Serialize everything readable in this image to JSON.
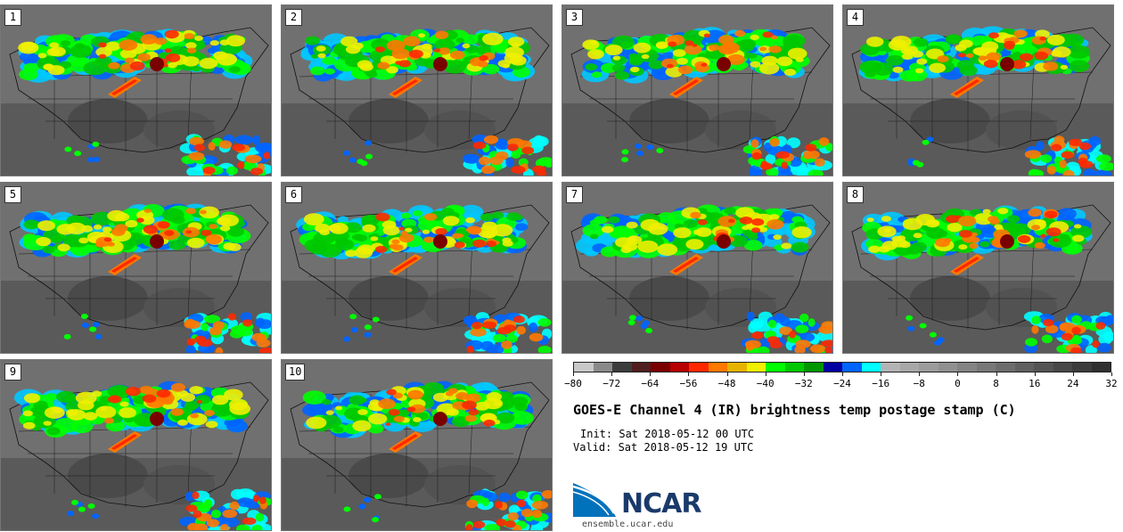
{
  "title": "GOES-E Channel 4 (IR) brightness temp postage stamp (C)",
  "init": "Init: Sat 2018-05-12 00 UTC",
  "valid": "Valid: Sat 2018-05-12 19 UTC",
  "logo_text": "NCAR",
  "site": "ensemble.ucar.edu",
  "panels": [
    {
      "label": "1"
    },
    {
      "label": "2"
    },
    {
      "label": "3"
    },
    {
      "label": "4"
    },
    {
      "label": "5"
    },
    {
      "label": "6"
    },
    {
      "label": "7"
    },
    {
      "label": "8"
    },
    {
      "label": "9"
    },
    {
      "label": "10"
    }
  ],
  "colorbar": {
    "colors": [
      "#c8c8c8",
      "#8a8a8a",
      "#3c3c3c",
      "#501e1e",
      "#7a0000",
      "#b80000",
      "#ff2800",
      "#ff7800",
      "#e6b400",
      "#f0f000",
      "#00ff00",
      "#00c800",
      "#009600",
      "#0000a0",
      "#0064ff",
      "#00ffff",
      "#b4b4b4",
      "#a8a8a8",
      "#9c9c9c",
      "#909090",
      "#848484",
      "#787878",
      "#6c6c6c",
      "#606060",
      "#545454",
      "#484848",
      "#3c3c3c",
      "#303030"
    ],
    "ticks": [
      "−80",
      "−72",
      "−64",
      "−56",
      "−48",
      "−40",
      "−32",
      "−24",
      "−16",
      "−8",
      "0",
      "8",
      "16",
      "24",
      "32"
    ]
  },
  "brand": {
    "logo_blue": "#0072bc",
    "logo_navy": "#1a3a6b"
  }
}
